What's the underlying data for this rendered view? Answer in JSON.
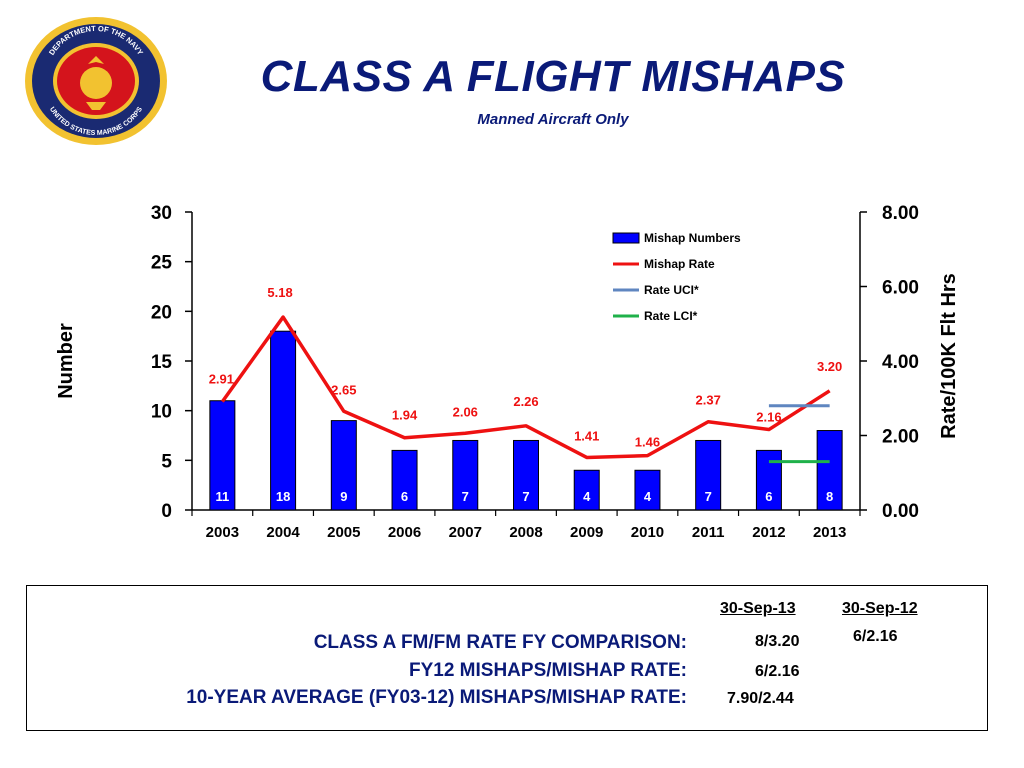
{
  "header": {
    "title": "CLASS A FLIGHT MISHAPS",
    "subtitle": "Manned Aircraft Only"
  },
  "seal": {
    "top_text": "DEPARTMENT OF THE NAVY",
    "bottom_text": "UNITED STATES MARINE CORPS"
  },
  "chart_data": {
    "type": "bar",
    "categories": [
      "2003",
      "2004",
      "2005",
      "2006",
      "2007",
      "2008",
      "2009",
      "2010",
      "2011",
      "2012",
      "2013"
    ],
    "series": [
      {
        "name": "Mishap Numbers",
        "type": "bar",
        "axis": "left",
        "values": [
          11,
          18,
          9,
          6,
          7,
          7,
          4,
          4,
          7,
          6,
          8
        ],
        "color": "#0000ff"
      },
      {
        "name": "Mishap Rate",
        "type": "line",
        "axis": "right",
        "values": [
          2.91,
          5.18,
          2.65,
          1.94,
          2.06,
          2.26,
          1.41,
          1.46,
          2.37,
          2.16,
          3.2
        ],
        "color": "#ee1111"
      },
      {
        "name": "Rate UCI*",
        "type": "line",
        "axis": "right",
        "x": [
          "2012",
          "2013"
        ],
        "values": [
          2.8,
          2.8
        ],
        "color": "#5f86c0"
      },
      {
        "name": "Rate LCI*",
        "type": "line",
        "axis": "right",
        "x": [
          "2012",
          "2013"
        ],
        "values": [
          1.3,
          1.3
        ],
        "color": "#1fb14a"
      }
    ],
    "rate_labels": [
      "2.91",
      "5.18",
      "2.65",
      "1.94",
      "2.06",
      "2.26",
      "1.41",
      "1.46",
      "2.37",
      "2.16",
      "3.20"
    ],
    "ylabel": "Number",
    "ylabel_right": "Rate/100K Flt Hrs",
    "ylim": [
      0,
      30
    ],
    "ylim_right": [
      0,
      8
    ],
    "yticks": [
      "0",
      "5",
      "10",
      "15",
      "20",
      "25",
      "30"
    ],
    "yticks_right": [
      "0.00",
      "2.00",
      "4.00",
      "6.00",
      "8.00"
    ],
    "legend_position": "top-right",
    "grid": false
  },
  "comparison": {
    "col1_header": "30-Sep-13",
    "col2_header": "30-Sep-12",
    "rows": [
      {
        "label": "CLASS A FM/FM RATE FY COMPARISON:",
        "col1": "8/3.20",
        "col2": "6/2.16"
      },
      {
        "label": "FY12 MISHAPS/MISHAP RATE:",
        "col1": "6/2.16",
        "col2": ""
      },
      {
        "label": "10-YEAR AVERAGE (FY03-12) MISHAPS/MISHAP RATE:",
        "col1": "7.90/2.44",
        "col2": ""
      }
    ]
  }
}
